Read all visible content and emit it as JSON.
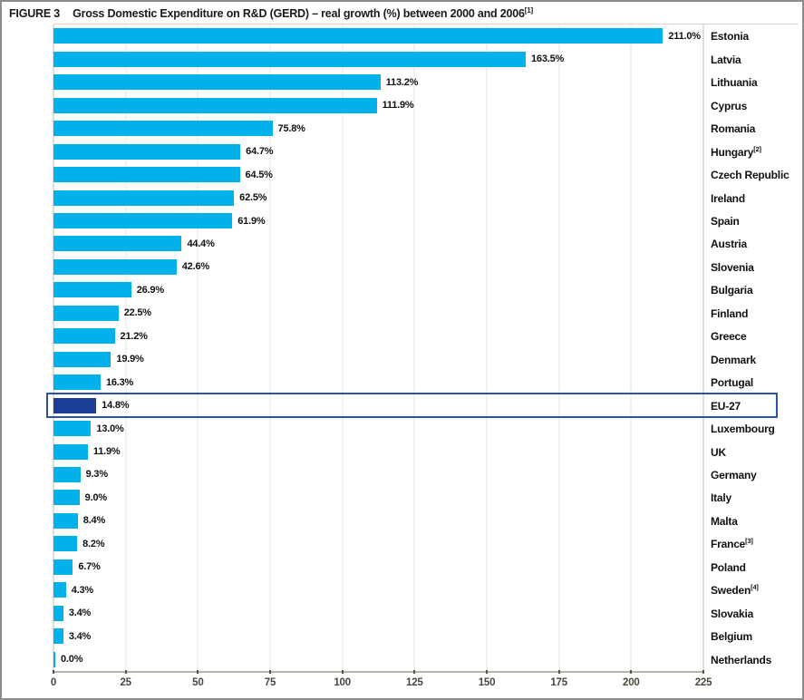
{
  "title": {
    "figure_label": "FIGURE 3",
    "text": "Gross Domestic Expenditure on R&D (GERD) – real growth (%) between 2000 and 2006",
    "superscript": "[1]"
  },
  "chart_data": {
    "type": "bar",
    "orientation": "horizontal",
    "title": "FIGURE 3 Gross Domestic Expenditure on R&D (GERD) – real growth (%) between 2000 and 2006 [1]",
    "xlabel": "",
    "ylabel": "",
    "unit": "%",
    "xlim": [
      0,
      225
    ],
    "x_ticks": [
      0,
      25,
      50,
      75,
      100,
      125,
      150,
      175,
      200,
      225
    ],
    "grid": true,
    "legend": "none",
    "highlighted_category": "EU-27",
    "bars": [
      {
        "country": "Estonia",
        "sup": "",
        "value": 211.0,
        "label": "211.0%",
        "highlight": false
      },
      {
        "country": "Latvia",
        "sup": "",
        "value": 163.5,
        "label": "163.5%",
        "highlight": false
      },
      {
        "country": "Lithuania",
        "sup": "",
        "value": 113.2,
        "label": "113.2%",
        "highlight": false
      },
      {
        "country": "Cyprus",
        "sup": "",
        "value": 111.9,
        "label": "111.9%",
        "highlight": false
      },
      {
        "country": "Romania",
        "sup": "",
        "value": 75.8,
        "label": "75.8%",
        "highlight": false
      },
      {
        "country": "Hungary",
        "sup": "[2]",
        "value": 64.7,
        "label": "64.7%",
        "highlight": false
      },
      {
        "country": "Czech Republic",
        "sup": "",
        "value": 64.5,
        "label": "64.5%",
        "highlight": false
      },
      {
        "country": "Ireland",
        "sup": "",
        "value": 62.5,
        "label": "62.5%",
        "highlight": false
      },
      {
        "country": "Spain",
        "sup": "",
        "value": 61.9,
        "label": "61.9%",
        "highlight": false
      },
      {
        "country": "Austria",
        "sup": "",
        "value": 44.4,
        "label": "44.4%",
        "highlight": false
      },
      {
        "country": "Slovenia",
        "sup": "",
        "value": 42.6,
        "label": "42.6%",
        "highlight": false
      },
      {
        "country": "Bulgaria",
        "sup": "",
        "value": 26.9,
        "label": "26.9%",
        "highlight": false
      },
      {
        "country": "Finland",
        "sup": "",
        "value": 22.5,
        "label": "22.5%",
        "highlight": false
      },
      {
        "country": "Greece",
        "sup": "",
        "value": 21.2,
        "label": "21.2%",
        "highlight": false
      },
      {
        "country": "Denmark",
        "sup": "",
        "value": 19.9,
        "label": "19.9%",
        "highlight": false
      },
      {
        "country": "Portugal",
        "sup": "",
        "value": 16.3,
        "label": "16.3%",
        "highlight": false
      },
      {
        "country": "EU-27",
        "sup": "",
        "value": 14.8,
        "label": "14.8%",
        "highlight": true
      },
      {
        "country": "Luxembourg",
        "sup": "",
        "value": 13.0,
        "label": "13.0%",
        "highlight": false
      },
      {
        "country": "UK",
        "sup": "",
        "value": 11.9,
        "label": "11.9%",
        "highlight": false
      },
      {
        "country": "Germany",
        "sup": "",
        "value": 9.3,
        "label": "9.3%",
        "highlight": false
      },
      {
        "country": "Italy",
        "sup": "",
        "value": 9.0,
        "label": "9.0%",
        "highlight": false
      },
      {
        "country": "Malta",
        "sup": "",
        "value": 8.4,
        "label": "8.4%",
        "highlight": false
      },
      {
        "country": "France",
        "sup": "[3]",
        "value": 8.2,
        "label": "8.2%",
        "highlight": false
      },
      {
        "country": "Poland",
        "sup": "",
        "value": 6.7,
        "label": "6.7%",
        "highlight": false
      },
      {
        "country": "Sweden",
        "sup": "[4]",
        "value": 4.3,
        "label": "4.3%",
        "highlight": false
      },
      {
        "country": "Slovakia",
        "sup": "",
        "value": 3.4,
        "label": "3.4%",
        "highlight": false
      },
      {
        "country": "Belgium",
        "sup": "",
        "value": 3.4,
        "label": "3.4%",
        "highlight": false
      },
      {
        "country": "Netherlands",
        "sup": "",
        "value": 0.0,
        "label": "0.0%",
        "highlight": false
      }
    ],
    "colors": {
      "bar": "#00b1ec",
      "highlight_bar": "#1d3e97",
      "highlight_box_border": "#2a52a5",
      "gridline": "#eae6dc",
      "axis": "#b6b2a8",
      "tick": "#55534a"
    }
  }
}
